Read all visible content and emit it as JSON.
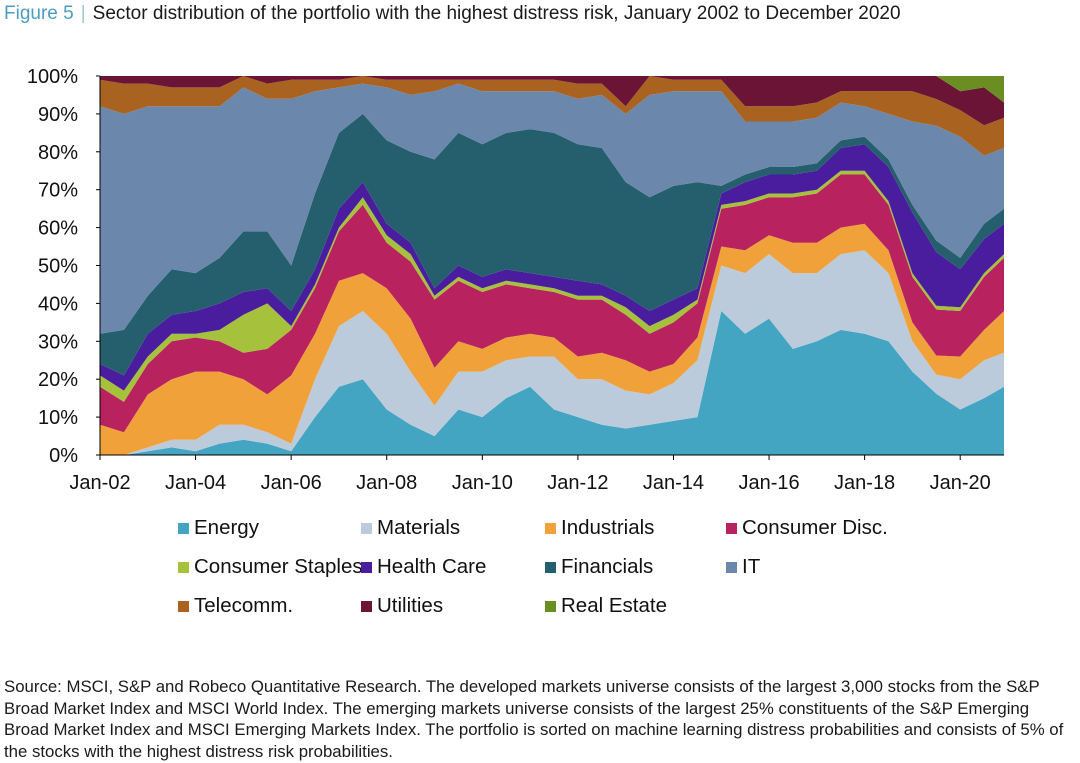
{
  "header": {
    "figure_label": "Figure  5",
    "separator": "|",
    "title": "Sector distribution of the portfolio with the highest distress risk, January 2002 to December 2020"
  },
  "source_text": "Source: MSCI, S&P and Robeco Quantitative Research. The developed markets universe consists of the largest 3,000 stocks from the S&P Broad Market Index and MSCI World Index. The emerging markets universe consists of the largest 25% constituents of the S&P Emerging Broad Market Index and MSCI Emerging Markets Index. The portfolio is sorted on machine learning distress probabilities and consists of 5% of the stocks with the highest distress risk probabilities.",
  "chart_data": {
    "type": "area",
    "stacked": true,
    "x": [
      "2002-01",
      "2002-07",
      "2003-01",
      "2003-07",
      "2004-01",
      "2004-07",
      "2005-01",
      "2005-07",
      "2006-01",
      "2006-07",
      "2007-01",
      "2007-07",
      "2008-01",
      "2008-07",
      "2009-01",
      "2009-07",
      "2010-01",
      "2010-07",
      "2011-01",
      "2011-07",
      "2012-01",
      "2012-07",
      "2013-01",
      "2013-07",
      "2014-01",
      "2014-07",
      "2015-01",
      "2015-07",
      "2016-01",
      "2016-07",
      "2017-01",
      "2017-07",
      "2018-01",
      "2018-07",
      "2019-01",
      "2019-07",
      "2020-01",
      "2020-07",
      "2020-12"
    ],
    "x_tick_labels": [
      "Jan-02",
      "Jan-04",
      "Jan-06",
      "Jan-08",
      "Jan-10",
      "Jan-12",
      "Jan-14",
      "Jan-16",
      "Jan-18",
      "Jan-20"
    ],
    "y_tick_labels": [
      "0%",
      "10%",
      "20%",
      "30%",
      "40%",
      "50%",
      "60%",
      "70%",
      "80%",
      "90%",
      "100%"
    ],
    "ylim": [
      0,
      100
    ],
    "y_unit": "%",
    "series": [
      {
        "name": "Energy",
        "color": "#44a5c2",
        "values": [
          0,
          0,
          1,
          2,
          1,
          3,
          4,
          3,
          1,
          10,
          18,
          20,
          12,
          8,
          5,
          12,
          10,
          15,
          18,
          12,
          10,
          8,
          7,
          8,
          9,
          10,
          38,
          32,
          36,
          28,
          30,
          33,
          32,
          30,
          22,
          16,
          12,
          15,
          18
        ]
      },
      {
        "name": "Materials",
        "color": "#bccbdb",
        "values": [
          0,
          0,
          1,
          2,
          3,
          5,
          4,
          3,
          2,
          10,
          16,
          18,
          20,
          14,
          8,
          10,
          12,
          10,
          8,
          14,
          10,
          12,
          10,
          8,
          10,
          15,
          12,
          16,
          17,
          20,
          18,
          20,
          22,
          18,
          8,
          5,
          8,
          10,
          9
        ]
      },
      {
        "name": "Industrials",
        "color": "#f0a13a",
        "values": [
          8,
          6,
          14,
          16,
          18,
          14,
          12,
          10,
          18,
          12,
          12,
          10,
          12,
          14,
          10,
          8,
          6,
          6,
          6,
          5,
          6,
          7,
          8,
          6,
          5,
          6,
          5,
          6,
          5,
          8,
          8,
          7,
          7,
          6,
          5,
          5,
          6,
          8,
          11
        ]
      },
      {
        "name": "Consumer Disc.",
        "color": "#b7225f",
        "values": [
          10,
          8,
          8,
          10,
          9,
          8,
          7,
          12,
          12,
          12,
          13,
          18,
          12,
          15,
          18,
          16,
          15,
          14,
          12,
          12,
          15,
          14,
          12,
          10,
          11,
          9,
          10,
          12,
          10,
          12,
          13,
          14,
          13,
          12,
          12,
          12,
          12,
          14,
          14
        ]
      },
      {
        "name": "Consumer Staples",
        "color": "#a6c13c",
        "values": [
          3,
          3,
          2,
          2,
          1,
          3,
          10,
          12,
          1,
          1,
          1,
          2,
          2,
          2,
          1,
          1,
          1,
          1,
          1,
          1,
          1,
          1,
          2,
          2,
          2,
          1,
          1,
          1,
          1,
          1,
          1,
          1,
          1,
          1,
          1,
          1,
          1,
          1,
          1
        ]
      },
      {
        "name": "Health Care",
        "color": "#4a1d9f",
        "values": [
          3,
          4,
          6,
          5,
          6,
          7,
          6,
          4,
          4,
          4,
          5,
          4,
          3,
          3,
          2,
          3,
          3,
          3,
          3,
          3,
          4,
          3,
          3,
          4,
          4,
          3,
          3,
          5,
          5,
          5,
          5,
          6,
          7,
          9,
          16,
          14,
          10,
          9,
          8
        ]
      },
      {
        "name": "Financials",
        "color": "#255f6e",
        "values": [
          8,
          12,
          10,
          12,
          10,
          12,
          16,
          15,
          12,
          20,
          20,
          18,
          22,
          24,
          34,
          35,
          35,
          36,
          38,
          38,
          36,
          36,
          30,
          30,
          30,
          28,
          2,
          2,
          2,
          2,
          2,
          2,
          2,
          2,
          2,
          3,
          3,
          4,
          4
        ]
      },
      {
        "name": "IT",
        "color": "#6b87ab",
        "values": [
          60,
          57,
          50,
          43,
          44,
          40,
          38,
          35,
          44,
          27,
          12,
          8,
          14,
          15,
          18,
          13,
          14,
          11,
          10,
          11,
          12,
          14,
          18,
          27,
          25,
          24,
          25,
          14,
          12,
          12,
          12,
          10,
          8,
          12,
          22,
          30,
          32,
          18,
          16
        ]
      },
      {
        "name": "Telecomm.",
        "color": "#a9621f",
        "values": [
          7,
          8,
          6,
          5,
          5,
          5,
          3,
          4,
          5,
          3,
          2,
          2,
          2,
          4,
          3,
          1,
          3,
          3,
          3,
          3,
          4,
          3,
          2,
          5,
          3,
          3,
          3,
          4,
          4,
          4,
          4,
          3,
          4,
          6,
          8,
          7,
          7,
          8,
          8
        ]
      },
      {
        "name": "Utilities",
        "color": "#6b1436",
        "values": [
          1,
          2,
          2,
          3,
          3,
          3,
          0,
          2,
          1,
          1,
          1,
          0,
          1,
          1,
          1,
          1,
          1,
          1,
          1,
          1,
          2,
          2,
          8,
          0,
          1,
          1,
          1,
          8,
          8,
          8,
          7,
          4,
          4,
          4,
          4,
          6,
          5,
          10,
          4
        ]
      },
      {
        "name": "Real Estate",
        "color": "#6b8e23",
        "values": [
          0,
          0,
          0,
          0,
          0,
          0,
          0,
          0,
          0,
          0,
          0,
          0,
          0,
          0,
          0,
          0,
          0,
          0,
          0,
          0,
          0,
          0,
          0,
          0,
          0,
          0,
          0,
          0,
          0,
          0,
          0,
          0,
          0,
          0,
          0,
          0,
          4,
          3,
          7
        ]
      }
    ]
  }
}
